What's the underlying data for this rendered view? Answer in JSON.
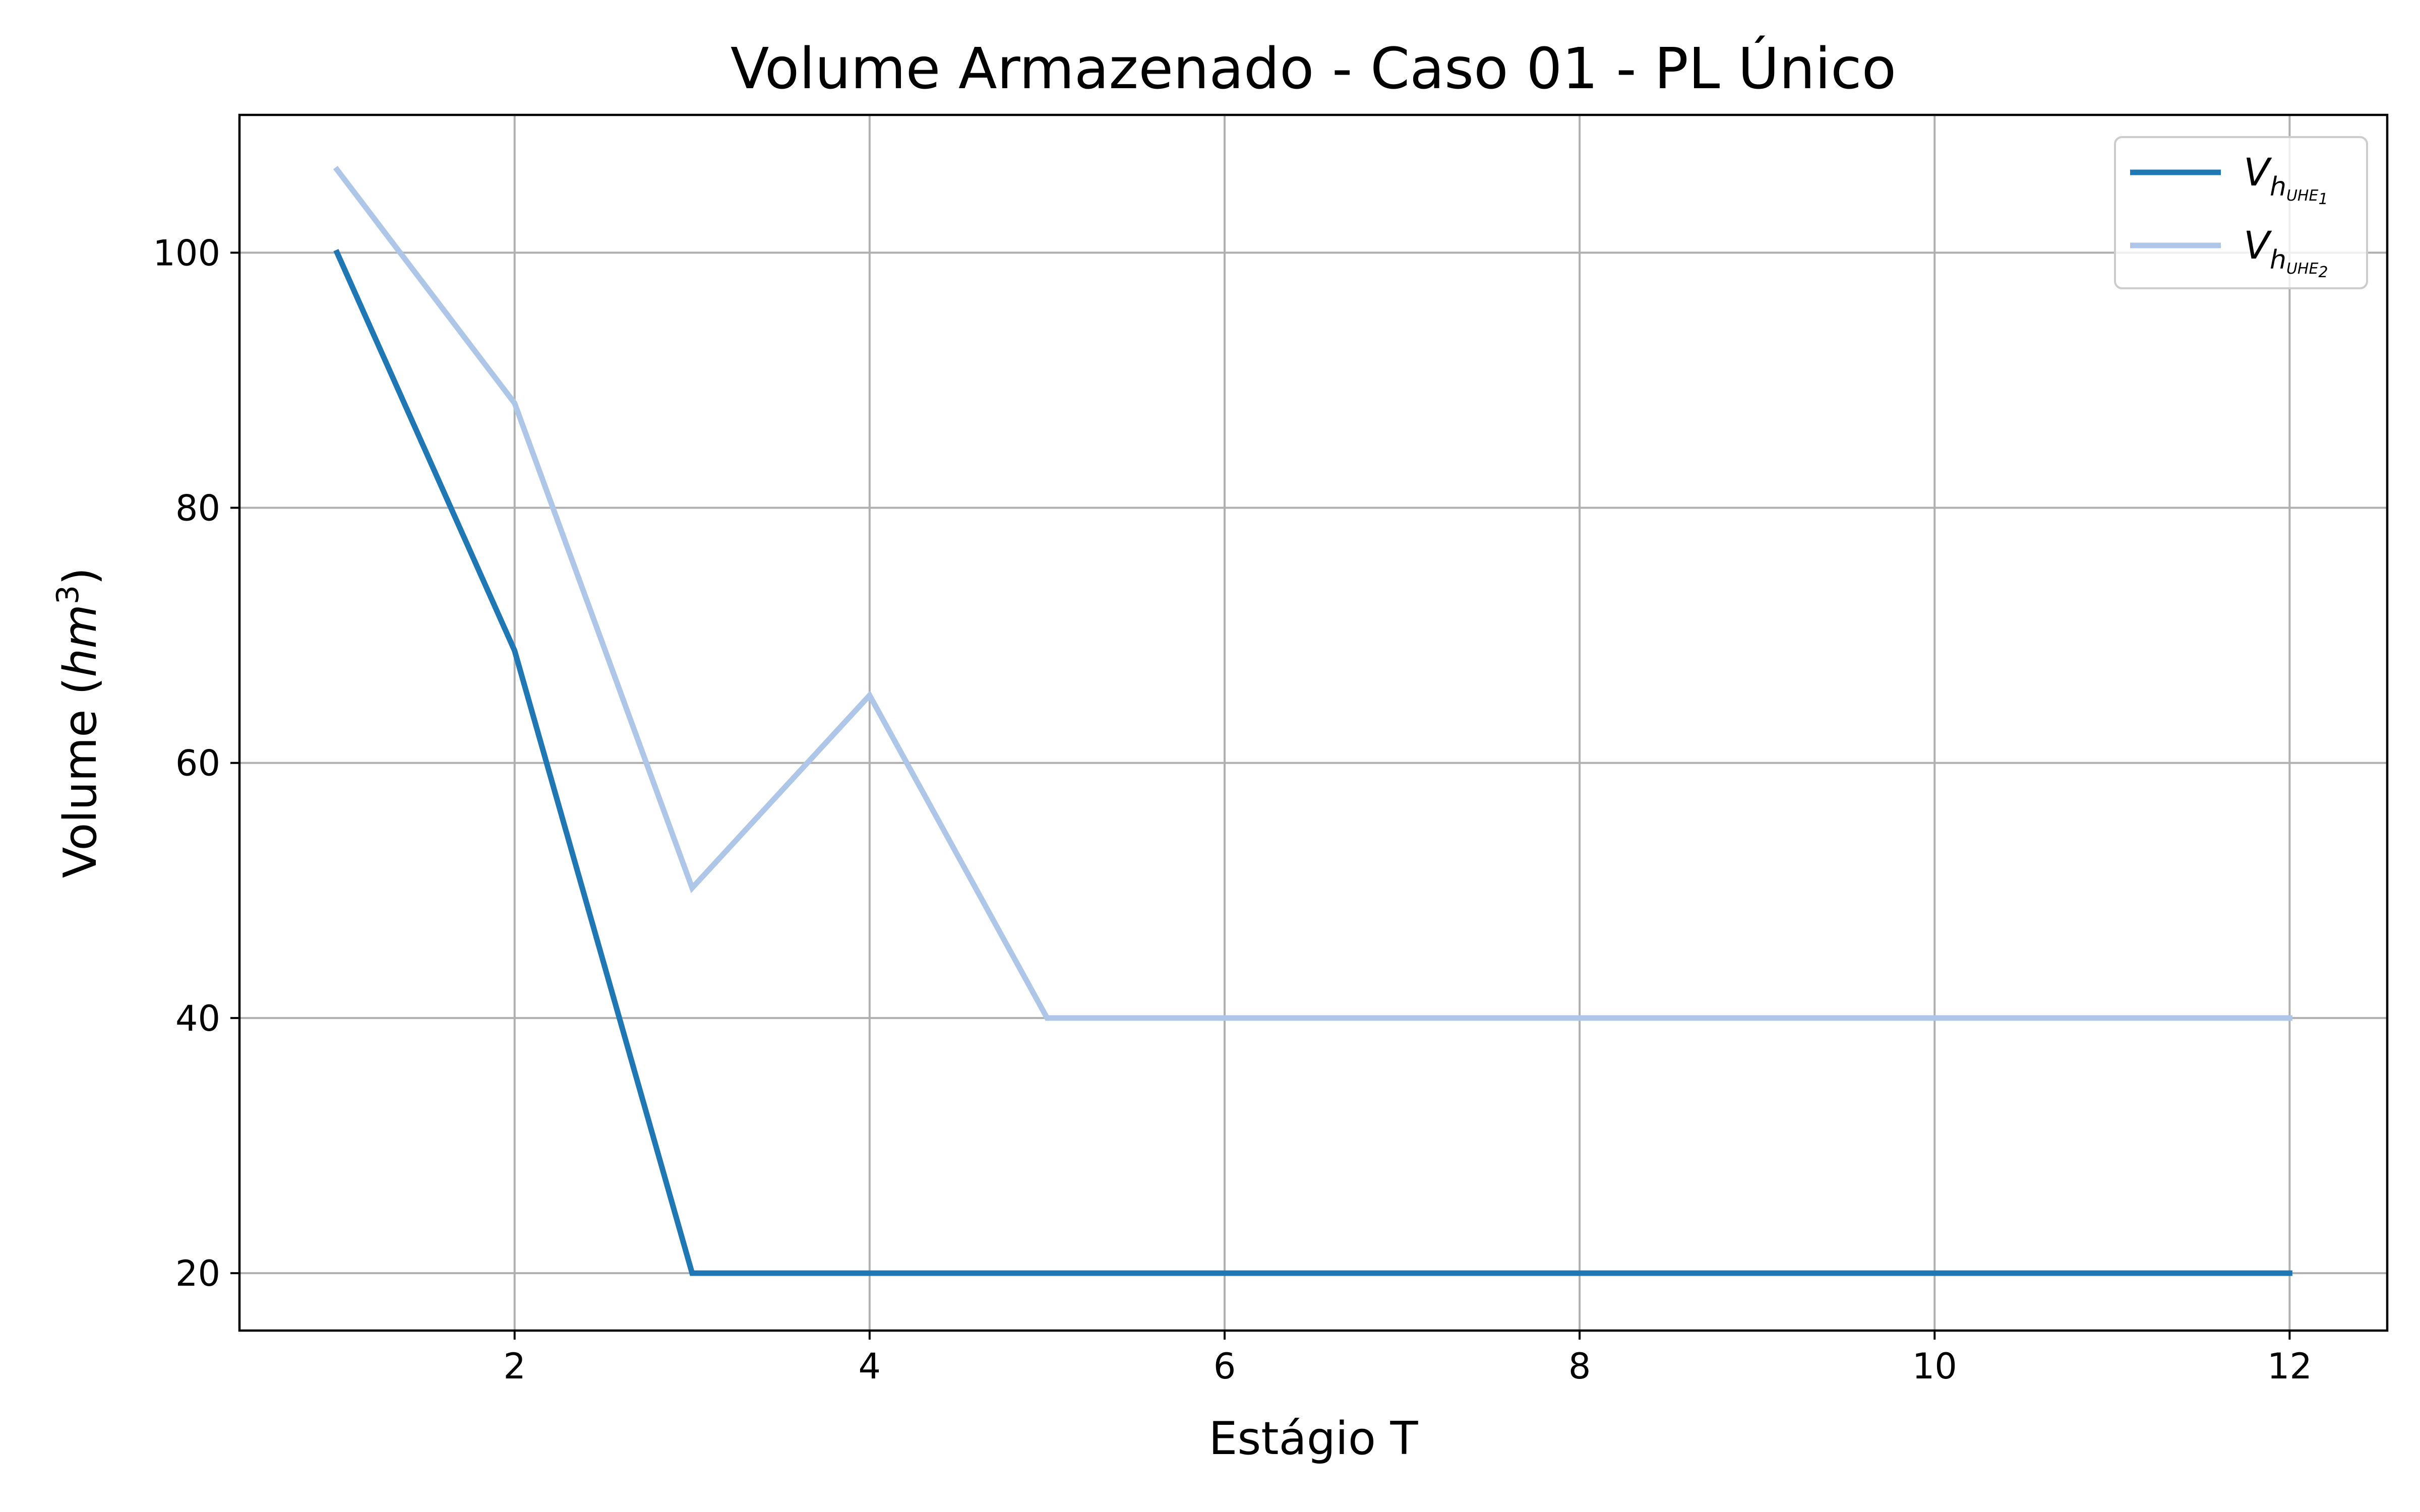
{
  "chart_data": {
    "type": "line",
    "title": "Volume Armazenado - Caso 01 - PL Único",
    "xlabel": "Estágio T",
    "ylabel_prefix": "Volume (",
    "ylabel_math": "hm",
    "ylabel_sup": "3",
    "ylabel_suffix": ")",
    "xlim": [
      0.45,
      12.55
    ],
    "ylim": [
      15.5,
      110.8
    ],
    "xticks": [
      2,
      4,
      6,
      8,
      10,
      12
    ],
    "yticks": [
      20,
      40,
      60,
      80,
      100
    ],
    "grid": true,
    "legend_placement": "top-right",
    "x": [
      1,
      2,
      3,
      4,
      5,
      6,
      7,
      8,
      9,
      10,
      11,
      12
    ],
    "series": [
      {
        "name": "V_{h_{UHE_1}}",
        "legend_main": "V",
        "legend_sub": "h",
        "legend_subsub": "UHE",
        "legend_index": "1",
        "color": "#1f77b4",
        "values": [
          100,
          68.8,
          20,
          20,
          20,
          20,
          20,
          20,
          20,
          20,
          20,
          20
        ]
      },
      {
        "name": "V_{h_{UHE_2}}",
        "legend_main": "V",
        "legend_sub": "h",
        "legend_subsub": "UHE",
        "legend_index": "2",
        "color": "#aec7e8",
        "values": [
          106.5,
          88.2,
          50.2,
          65.3,
          40,
          40,
          40,
          40,
          40,
          40,
          40,
          40
        ]
      }
    ]
  }
}
